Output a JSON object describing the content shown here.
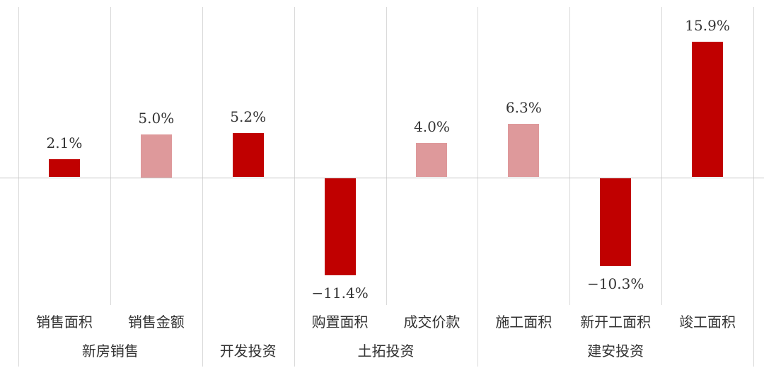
{
  "chart_data": {
    "type": "bar",
    "title": "",
    "unit": "%",
    "ylim": [
      -15,
      20
    ],
    "grid": "vertical-separators-only",
    "legend": "none",
    "colors": {
      "dark_red": "#c00000",
      "light_red": "#de999b",
      "gridline": "#d9d9d9",
      "zero_line": "#c4c4c4",
      "text": "#333333"
    },
    "groups": [
      {
        "label": "新房销售",
        "bars": [
          {
            "category": "销售面积",
            "value": 2.1,
            "value_label": "2.1%",
            "tone": "dark"
          },
          {
            "category": "销售金额",
            "value": 5.0,
            "value_label": "5.0%",
            "tone": "light"
          }
        ]
      },
      {
        "label": "开发投资",
        "bars": [
          {
            "category": "",
            "value": 5.2,
            "value_label": "5.2%",
            "tone": "dark"
          }
        ]
      },
      {
        "label": "土拓投资",
        "bars": [
          {
            "category": "购置面积",
            "value": -11.4,
            "value_label": "−11.4%",
            "tone": "dark"
          },
          {
            "category": "成交价款",
            "value": 4.0,
            "value_label": "4.0%",
            "tone": "light"
          }
        ]
      },
      {
        "label": "建安投资",
        "bars": [
          {
            "category": "施工面积",
            "value": 6.3,
            "value_label": "6.3%",
            "tone": "light"
          },
          {
            "category": "新开工面积",
            "value": -10.3,
            "value_label": "−10.3%",
            "tone": "dark"
          },
          {
            "category": "竣工面积",
            "value": 15.9,
            "value_label": "15.9%",
            "tone": "dark"
          }
        ]
      }
    ]
  }
}
